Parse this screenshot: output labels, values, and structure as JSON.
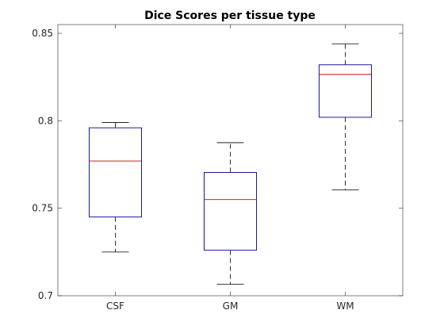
{
  "chart_data": {
    "type": "box",
    "title": "Dice Scores per tissue type",
    "xlabel": "",
    "ylabel": "",
    "categories": [
      "CSF",
      "GM",
      "WM"
    ],
    "boxes": [
      {
        "category": "CSF",
        "whisker_low": 0.725,
        "q1": 0.745,
        "median": 0.777,
        "q3": 0.796,
        "whisker_high": 0.799
      },
      {
        "category": "GM",
        "whisker_low": 0.7065,
        "q1": 0.726,
        "median": 0.755,
        "q3": 0.7705,
        "whisker_high": 0.7875
      },
      {
        "category": "WM",
        "whisker_low": 0.7605,
        "q1": 0.802,
        "median": 0.8265,
        "q3": 0.832,
        "whisker_high": 0.844
      }
    ],
    "ylim": [
      0.7,
      0.855
    ],
    "yticks": [
      0.7,
      0.75,
      0.8,
      0.85
    ],
    "ytick_labels": [
      "0.7",
      "0.75",
      "0.8",
      "0.85"
    ],
    "grid": false,
    "colors": {
      "box": "#00008b",
      "median": "#cc0000",
      "whisker": "#000000"
    }
  }
}
